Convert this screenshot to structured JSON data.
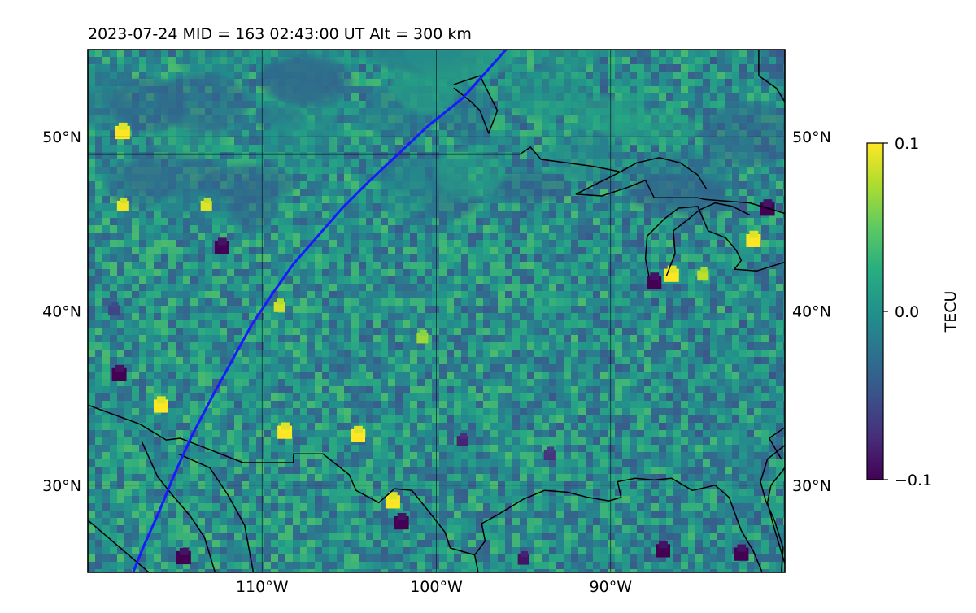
{
  "chart_data": {
    "type": "heatmap",
    "title": "2023-07-24  MID = 163    02:43:00  UT  Alt = 300 km",
    "xlim": [
      -120,
      -80
    ],
    "ylim": [
      25,
      55
    ],
    "x_ticks": [
      -110,
      -100,
      -90
    ],
    "x_tick_labels": [
      "110°W",
      "100°W",
      "90°W"
    ],
    "y_ticks": [
      30,
      40,
      50
    ],
    "y_tick_labels": [
      "30°N",
      "40°N",
      "50°N"
    ],
    "grid": true,
    "colormap": "viridis",
    "colorbar": {
      "label": "TECU",
      "range": [
        -0.1,
        0.1
      ],
      "ticks": [
        0.1,
        0.0,
        -0.1
      ],
      "tick_labels": [
        "0.1",
        "0.0",
        "−0.1"
      ]
    },
    "base_color": "#2f8f8d",
    "patches": [
      {
        "lon": -118,
        "lat": 50.2,
        "value": 0.1
      },
      {
        "lon": -118,
        "lat": 46.0,
        "value": 0.095
      },
      {
        "lon": -113.2,
        "lat": 46.0,
        "value": 0.09
      },
      {
        "lon": -112.3,
        "lat": 43.6,
        "value": -0.1
      },
      {
        "lon": -109.0,
        "lat": 40.2,
        "value": 0.085
      },
      {
        "lon": -115.8,
        "lat": 34.5,
        "value": 0.1
      },
      {
        "lon": -108.7,
        "lat": 33.0,
        "value": 0.1
      },
      {
        "lon": -104.5,
        "lat": 32.8,
        "value": 0.1
      },
      {
        "lon": -102.5,
        "lat": 29.0,
        "value": 0.1
      },
      {
        "lon": -102.0,
        "lat": 27.8,
        "value": -0.1
      },
      {
        "lon": -118.2,
        "lat": 36.3,
        "value": -0.1
      },
      {
        "lon": -114.5,
        "lat": 25.8,
        "value": -0.1
      },
      {
        "lon": -100.8,
        "lat": 38.4,
        "value": 0.07
      },
      {
        "lon": -81.8,
        "lat": 44.0,
        "value": 0.1
      },
      {
        "lon": -86.5,
        "lat": 42.0,
        "value": 0.1
      },
      {
        "lon": -84.7,
        "lat": 42.0,
        "value": 0.08
      },
      {
        "lon": -87.5,
        "lat": 41.6,
        "value": -0.1
      },
      {
        "lon": -81.0,
        "lat": 45.8,
        "value": -0.1
      },
      {
        "lon": -82.5,
        "lat": 26.0,
        "value": -0.1
      },
      {
        "lon": -87.0,
        "lat": 26.2,
        "value": -0.1
      },
      {
        "lon": -95.0,
        "lat": 25.7,
        "value": -0.09
      },
      {
        "lon": -98.5,
        "lat": 32.5,
        "value": -0.08
      },
      {
        "lon": -93.5,
        "lat": 31.7,
        "value": -0.07
      },
      {
        "lon": -118.5,
        "lat": 40.0,
        "value": -0.06
      }
    ],
    "track": {
      "color": "#1a1aff",
      "points": [
        [
          -117.4,
          25
        ],
        [
          -116.8,
          26.5
        ],
        [
          -115.9,
          28.5
        ],
        [
          -115.0,
          30.7
        ],
        [
          -114.0,
          32.9
        ],
        [
          -112.8,
          35.2
        ],
        [
          -111.7,
          37.2
        ],
        [
          -110.6,
          39.2
        ],
        [
          -109.4,
          41.0
        ],
        [
          -108.2,
          42.7
        ],
        [
          -106.8,
          44.3
        ],
        [
          -105.4,
          45.9
        ],
        [
          -103.9,
          47.4
        ],
        [
          -102.2,
          49.0
        ],
        [
          -100.5,
          50.6
        ],
        [
          -98.5,
          52.2
        ],
        [
          -96.0,
          55.0
        ]
      ]
    },
    "coastlines": [
      [
        [
          -120,
          49
        ],
        [
          -95.2,
          49
        ],
        [
          -94.6,
          49.4
        ],
        [
          -94.0,
          48.7
        ],
        [
          -91.0,
          48.3
        ],
        [
          -89.5,
          48.0
        ]
      ],
      [
        [
          -120,
          34.6
        ],
        [
          -117.0,
          33.5
        ],
        [
          -115.5,
          32.6
        ],
        [
          -114.7,
          32.7
        ],
        [
          -111.1,
          31.3
        ],
        [
          -108.2,
          31.3
        ],
        [
          -108.2,
          31.8
        ],
        [
          -106.5,
          31.8
        ],
        [
          -105.0,
          30.6
        ],
        [
          -104.6,
          29.7
        ],
        [
          -103.3,
          29.0
        ],
        [
          -102.4,
          29.8
        ],
        [
          -101.4,
          29.7
        ],
        [
          -100.2,
          28.2
        ],
        [
          -99.5,
          27.3
        ],
        [
          -99.2,
          26.4
        ],
        [
          -97.8,
          26.0
        ]
      ],
      [
        [
          -116.9,
          32.5
        ],
        [
          -116.0,
          30.5
        ],
        [
          -115.2,
          29.5
        ],
        [
          -114.1,
          28.2
        ],
        [
          -113.3,
          27.0
        ],
        [
          -112.7,
          25.0
        ]
      ],
      [
        [
          -114.8,
          31.8
        ],
        [
          -113.0,
          31.0
        ],
        [
          -112.0,
          29.5
        ],
        [
          -111.0,
          27.7
        ],
        [
          -110.5,
          25.0
        ]
      ],
      [
        [
          -97.8,
          26.0
        ],
        [
          -97.2,
          26.8
        ],
        [
          -97.4,
          27.8
        ],
        [
          -96.5,
          28.3
        ],
        [
          -95.0,
          29.2
        ],
        [
          -93.8,
          29.7
        ],
        [
          -92.5,
          29.6
        ],
        [
          -91.3,
          29.3
        ],
        [
          -90.1,
          29.1
        ],
        [
          -89.4,
          29.3
        ],
        [
          -89.6,
          30.2
        ],
        [
          -88.6,
          30.4
        ],
        [
          -87.5,
          30.3
        ],
        [
          -86.5,
          30.4
        ],
        [
          -85.3,
          29.7
        ],
        [
          -84.0,
          30.0
        ],
        [
          -83.2,
          29.3
        ],
        [
          -82.8,
          28.2
        ],
        [
          -82.5,
          27.4
        ],
        [
          -81.8,
          26.2
        ],
        [
          -81.3,
          25.0
        ]
      ],
      [
        [
          -97.8,
          26.0
        ],
        [
          -97.6,
          25.0
        ]
      ],
      [
        [
          -80.0,
          32.3
        ],
        [
          -81.0,
          31.5
        ],
        [
          -81.4,
          30.2
        ],
        [
          -81.1,
          29.1
        ],
        [
          -80.6,
          28.0
        ],
        [
          -80.1,
          26.4
        ],
        [
          -80.2,
          25.0
        ]
      ],
      [
        [
          -87.8,
          42.0
        ],
        [
          -88.0,
          43.0
        ],
        [
          -87.9,
          44.3
        ],
        [
          -86.9,
          45.3
        ],
        [
          -86.1,
          45.9
        ],
        [
          -85.0,
          46.0
        ],
        [
          -84.7,
          45.3
        ],
        [
          -84.4,
          44.6
        ],
        [
          -83.4,
          44.2
        ],
        [
          -82.8,
          43.5
        ],
        [
          -82.5,
          42.9
        ],
        [
          -82.9,
          42.4
        ],
        [
          -81.6,
          42.3
        ],
        [
          -80.0,
          42.8
        ]
      ],
      [
        [
          -86.8,
          42.0
        ],
        [
          -86.3,
          43.3
        ],
        [
          -86.4,
          44.6
        ],
        [
          -85.5,
          45.3
        ],
        [
          -84.9,
          45.8
        ],
        [
          -84.0,
          46.2
        ],
        [
          -83.0,
          46.0
        ],
        [
          -82.0,
          45.5
        ]
      ],
      [
        [
          -92.0,
          46.7
        ],
        [
          -90.5,
          46.6
        ],
        [
          -89.0,
          47.1
        ],
        [
          -88.0,
          47.5
        ],
        [
          -87.5,
          46.5
        ],
        [
          -86.3,
          46.5
        ],
        [
          -85.0,
          46.5
        ],
        [
          -84.6,
          46.4
        ],
        [
          -82.0,
          46.2
        ],
        [
          -80.0,
          45.6
        ]
      ],
      [
        [
          -92.0,
          46.7
        ],
        [
          -89.6,
          47.9
        ],
        [
          -88.5,
          48.5
        ],
        [
          -87.2,
          48.8
        ],
        [
          -86.0,
          48.5
        ],
        [
          -85.0,
          47.8
        ],
        [
          -84.5,
          47.0
        ]
      ],
      [
        [
          -120,
          28.0
        ],
        [
          -116.5,
          25.0
        ]
      ],
      [
        [
          -99.0,
          53.0
        ],
        [
          -97.5,
          53.5
        ],
        [
          -97.0,
          52.5
        ],
        [
          -96.5,
          51.5
        ],
        [
          -97.0,
          50.2
        ],
        [
          -97.5,
          51.5
        ],
        [
          -98.0,
          52.0
        ],
        [
          -99.0,
          52.8
        ]
      ],
      [
        [
          -81.5,
          55.0
        ],
        [
          -81.5,
          53.5
        ],
        [
          -80.5,
          52.8
        ],
        [
          -80.0,
          52.0
        ]
      ],
      [
        [
          -80.0,
          31.0
        ],
        [
          -80.8,
          30.0
        ],
        [
          -81.0,
          29.0
        ],
        [
          -80.6,
          27.5
        ],
        [
          -80.3,
          26.5
        ],
        [
          -80.0,
          25.5
        ]
      ],
      [
        [
          -79.0,
          34.0
        ],
        [
          -80.9,
          32.7
        ],
        [
          -80.2,
          31.5
        ]
      ]
    ]
  }
}
